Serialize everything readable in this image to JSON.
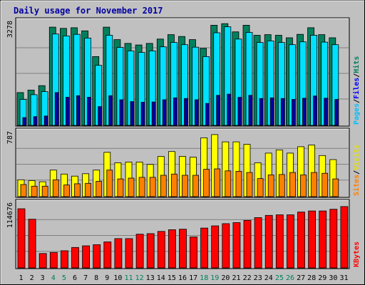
{
  "chart_data": [
    {
      "type": "bar",
      "panel": "hits-files-pages",
      "title": "Daily usage for November 2017",
      "ymax_label": "3278",
      "ymax": 3278,
      "categories": [
        "1",
        "2",
        "3",
        "4",
        "5",
        "6",
        "7",
        "8",
        "9",
        "10",
        "11",
        "12",
        "13",
        "14",
        "15",
        "16",
        "17",
        "18",
        "19",
        "20",
        "21",
        "22",
        "23",
        "24",
        "25",
        "26",
        "27",
        "28",
        "29",
        "30",
        "31"
      ],
      "weekend_days": [
        "4",
        "5",
        "11",
        "12",
        "18",
        "19",
        "25",
        "26"
      ],
      "series": [
        {
          "name": "Hits",
          "color": "#00805c",
          "values": [
            1050,
            1130,
            1270,
            3140,
            3100,
            3120,
            3020,
            2200,
            3140,
            2740,
            2620,
            2570,
            2620,
            2760,
            2900,
            2840,
            2740,
            2460,
            3200,
            3250,
            2990,
            3200,
            2880,
            2900,
            2880,
            2800,
            2910,
            3120,
            2900,
            2800,
            null
          ]
        },
        {
          "name": "Files",
          "color": "#00e0ff",
          "values": [
            830,
            980,
            1080,
            2920,
            2860,
            2910,
            2790,
            1920,
            2880,
            2490,
            2380,
            2330,
            2380,
            2510,
            2650,
            2580,
            2500,
            2200,
            2960,
            3150,
            2760,
            2970,
            2650,
            2700,
            2650,
            2580,
            2670,
            2880,
            2660,
            2580,
            null
          ]
        },
        {
          "name": "Pages",
          "color": "#0000a0",
          "values": [
            250,
            280,
            300,
            1050,
            900,
            950,
            900,
            600,
            950,
            820,
            760,
            740,
            750,
            820,
            880,
            860,
            820,
            700,
            960,
            1000,
            900,
            960,
            860,
            880,
            860,
            830,
            870,
            940,
            870,
            830,
            null
          ]
        }
      ],
      "y_label_parts": [
        {
          "text": "Pages",
          "color": "#00c0ff"
        },
        {
          "text": "/",
          "color": "#000000"
        },
        {
          "text": "Files",
          "color": "#0000ff"
        },
        {
          "text": "/",
          "color": "#000000"
        },
        {
          "text": "Hits",
          "color": "#00805c"
        }
      ]
    },
    {
      "type": "bar",
      "panel": "visits-sites",
      "ymax_label": "787",
      "ymax": 787,
      "series": [
        {
          "name": "Visits",
          "color": "#ffff00",
          "values": [
            210,
            200,
            185,
            330,
            280,
            255,
            285,
            330,
            550,
            420,
            430,
            430,
            400,
            500,
            560,
            500,
            490,
            730,
            770,
            680,
            680,
            650,
            420,
            540,
            580,
            540,
            620,
            640,
            510,
            460,
            null
          ]
        },
        {
          "name": "Sites",
          "color": "#ff8000",
          "values": [
            150,
            130,
            130,
            210,
            145,
            160,
            165,
            190,
            330,
            220,
            230,
            240,
            240,
            265,
            280,
            265,
            265,
            340,
            345,
            320,
            315,
            300,
            225,
            270,
            275,
            300,
            270,
            300,
            290,
            220,
            null
          ]
        }
      ],
      "y_label_parts": [
        {
          "text": "Sites",
          "color": "#ff8000"
        },
        {
          "text": "/",
          "color": "#000000"
        },
        {
          "text": "Visits",
          "color": "#e0e000"
        }
      ]
    },
    {
      "type": "bar",
      "panel": "kbytes",
      "ymax_label": "114676",
      "ymax": 114676,
      "series": [
        {
          "name": "KBytes",
          "color": "#ff0000",
          "values": [
            107000,
            88000,
            26000,
            28000,
            31000,
            37000,
            40000,
            42000,
            47000,
            53000,
            53000,
            61000,
            62000,
            66000,
            69000,
            70000,
            56000,
            72000,
            76000,
            80000,
            82000,
            86000,
            91000,
            95000,
            96000,
            96000,
            101000,
            103000,
            103000,
            106000,
            111000
          ]
        }
      ],
      "y_label_parts": [
        {
          "text": "KBytes",
          "color": "#ff0000"
        }
      ]
    }
  ]
}
